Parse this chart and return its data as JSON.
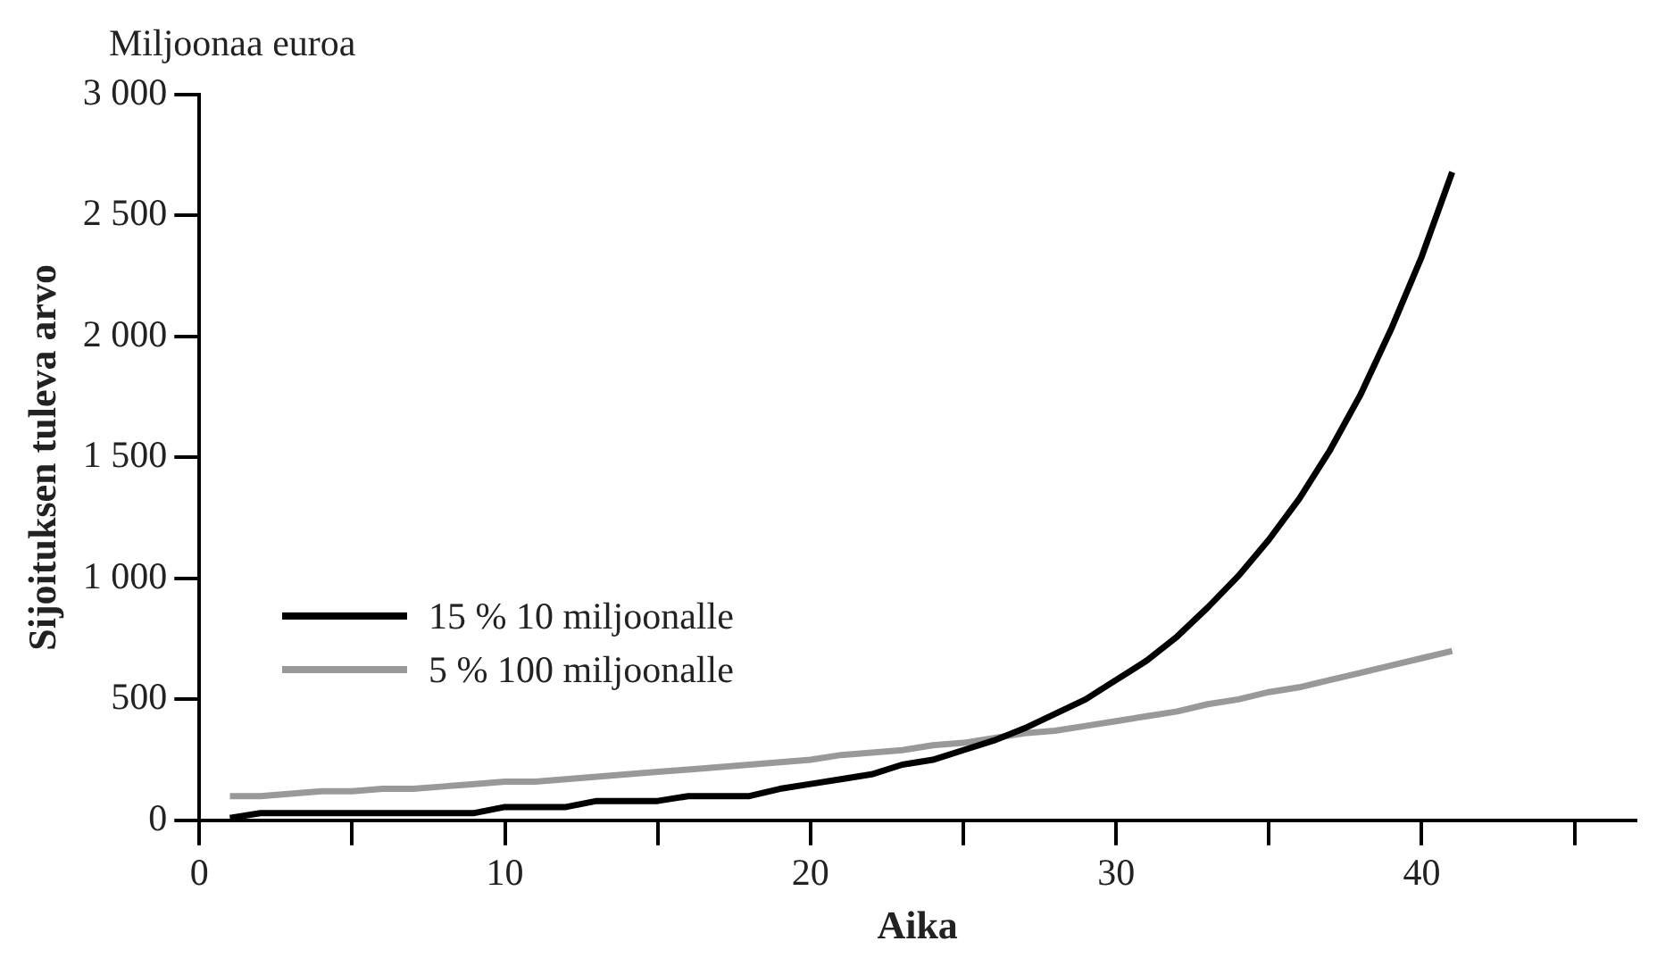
{
  "chart_data": {
    "type": "line",
    "subtitle": "Miljoonaa euroa",
    "xlabel": "Aika",
    "ylabel": "Sijoituksen tuleva arvo",
    "x": [
      1,
      2,
      3,
      4,
      5,
      6,
      7,
      8,
      9,
      10,
      11,
      12,
      13,
      14,
      15,
      16,
      17,
      18,
      19,
      20,
      21,
      22,
      23,
      24,
      25,
      26,
      27,
      28,
      29,
      30,
      31,
      32,
      33,
      34,
      35,
      36,
      37,
      38,
      39,
      40,
      41
    ],
    "series": [
      {
        "name": "15 % 10 miljoonalle",
        "color": "#000000",
        "values": [
          10,
          30,
          30,
          30,
          30,
          30,
          30,
          30,
          30,
          55,
          55,
          55,
          80,
          80,
          80,
          100,
          100,
          100,
          130,
          150,
          170,
          190,
          230,
          250,
          290,
          330,
          380,
          440,
          500,
          580,
          660,
          760,
          880,
          1010,
          1160,
          1330,
          1530,
          1760,
          2030,
          2330,
          2680
        ]
      },
      {
        "name": "5 % 100 miljoonalle",
        "color": "#999999",
        "values": [
          100,
          100,
          110,
          120,
          120,
          130,
          130,
          140,
          150,
          160,
          160,
          170,
          180,
          190,
          200,
          210,
          220,
          230,
          240,
          250,
          270,
          280,
          290,
          310,
          320,
          340,
          360,
          370,
          390,
          410,
          430,
          450,
          480,
          500,
          530,
          550,
          580,
          610,
          640,
          670,
          700
        ]
      }
    ],
    "xlim": [
      0,
      47
    ],
    "xticks": [
      0,
      {
        "value": 5,
        "label": null
      },
      10,
      {
        "value": 15,
        "label": null
      },
      20,
      {
        "value": 25,
        "label": null
      },
      30,
      {
        "value": 35,
        "label": null
      },
      40,
      {
        "value": 45,
        "label": null
      }
    ],
    "ylim": [
      0,
      3000
    ],
    "yticks": [
      0,
      500,
      {
        "value": 1000,
        "label": "1 000"
      },
      {
        "value": 1500,
        "label": "1 500"
      },
      {
        "value": 2000,
        "label": "2 000"
      },
      {
        "value": 2500,
        "label": "2 500"
      },
      {
        "value": 3000,
        "label": "3 000"
      }
    ],
    "grid": false,
    "legend": "left",
    "marker": "none",
    "line_style": "solid"
  }
}
